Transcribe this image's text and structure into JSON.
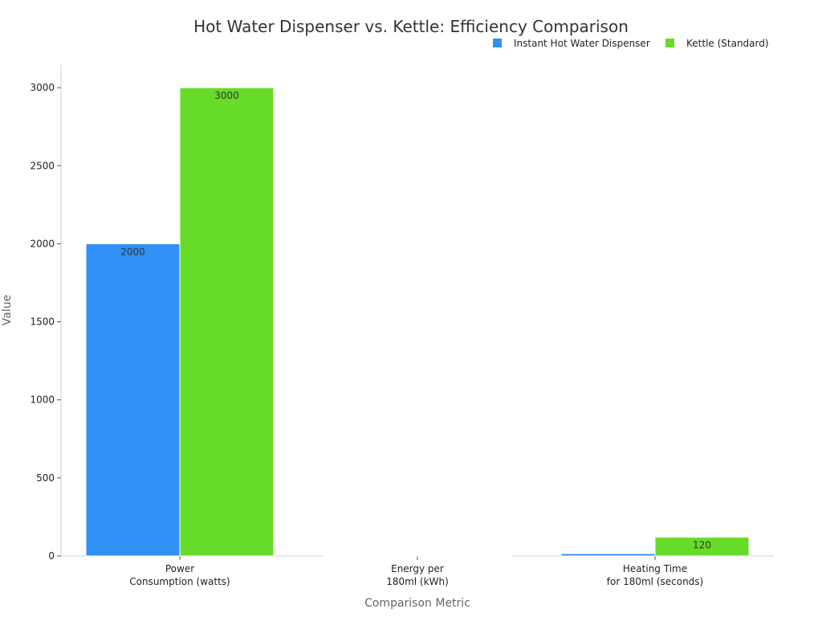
{
  "chart_data": {
    "type": "bar",
    "title": "Hot Water Dispenser vs. Kettle: Efficiency Comparison",
    "xlabel": "Comparison Metric",
    "ylabel": "Value",
    "categories": [
      [
        "Power",
        "Consumption (watts)"
      ],
      [
        "Energy per",
        "180ml (kWh)"
      ],
      [
        "Heating Time",
        "for 180ml (seconds)"
      ]
    ],
    "series": [
      {
        "name": "Instant Hot Water Dispenser",
        "color": "#3090f5",
        "values": [
          2000,
          0.01,
          15
        ],
        "labels": [
          "2000",
          "",
          ""
        ]
      },
      {
        "name": "Kettle (Standard)",
        "color": "#66dc28",
        "values": [
          3000,
          0.02,
          120
        ],
        "labels": [
          "3000",
          "",
          "120"
        ]
      }
    ],
    "ylim": [
      0,
      3150
    ],
    "yticks": [
      0,
      500,
      1000,
      1500,
      2000,
      2500,
      3000
    ],
    "legend_position": "top-right",
    "grid": false
  }
}
